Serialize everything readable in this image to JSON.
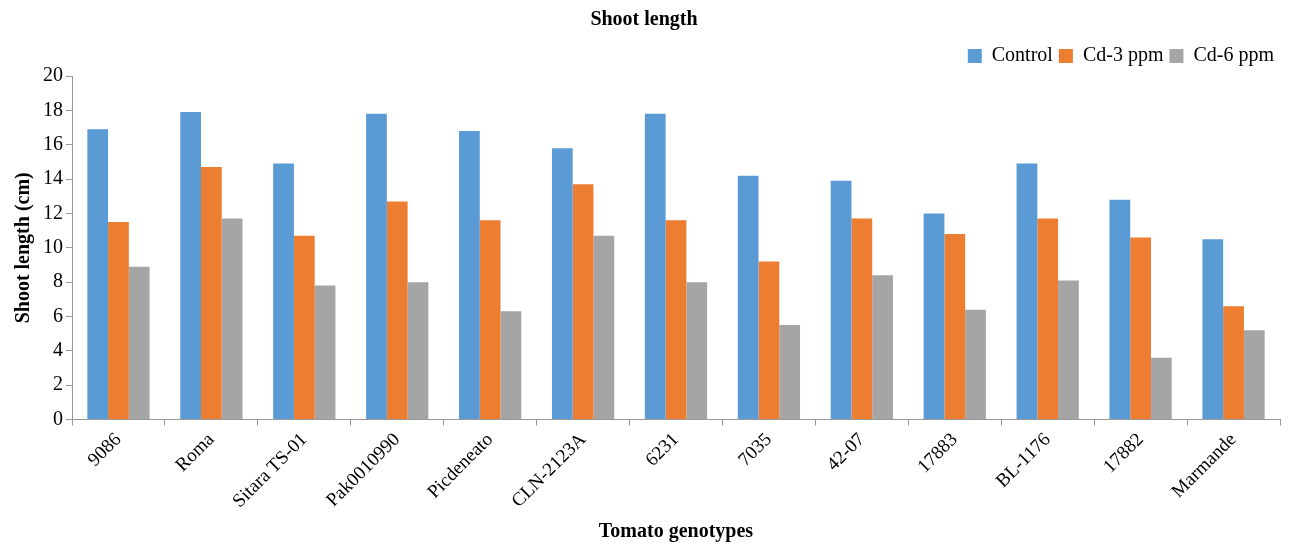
{
  "chart_data": {
    "type": "bar",
    "title": "Shoot length",
    "xlabel": "Tomato genotypes",
    "ylabel": "Shoot length (cm)",
    "categories": [
      "9086",
      "Roma",
      "Sitara TS-01",
      "Pak0010990",
      "Picdeneato",
      "CLN-2123A",
      "6231",
      "7035",
      "42-07",
      "17883",
      "BL-1176",
      "17882",
      "Marmande"
    ],
    "series": [
      {
        "name": "Control",
        "color": "#5b9bd5",
        "values": [
          16.9,
          17.9,
          14.9,
          17.8,
          16.8,
          15.8,
          17.8,
          14.2,
          13.9,
          12.0,
          14.9,
          12.8,
          10.5
        ]
      },
      {
        "name": "Cd-3 ppm",
        "color": "#ed7d31",
        "values": [
          11.5,
          14.7,
          10.7,
          12.7,
          11.6,
          13.7,
          11.6,
          9.2,
          11.7,
          10.8,
          11.7,
          10.6,
          6.6
        ]
      },
      {
        "name": "Cd-6 ppm",
        "color": "#a5a5a5",
        "values": [
          8.9,
          11.7,
          7.8,
          8.0,
          6.3,
          10.7,
          8.0,
          5.5,
          8.4,
          6.4,
          8.1,
          3.6,
          5.2
        ]
      }
    ],
    "ylim": [
      0,
      20
    ],
    "yticks": [
      0,
      2,
      4,
      6,
      8,
      10,
      12,
      14,
      16,
      18,
      20
    ],
    "grid": false,
    "legend": "top right"
  }
}
